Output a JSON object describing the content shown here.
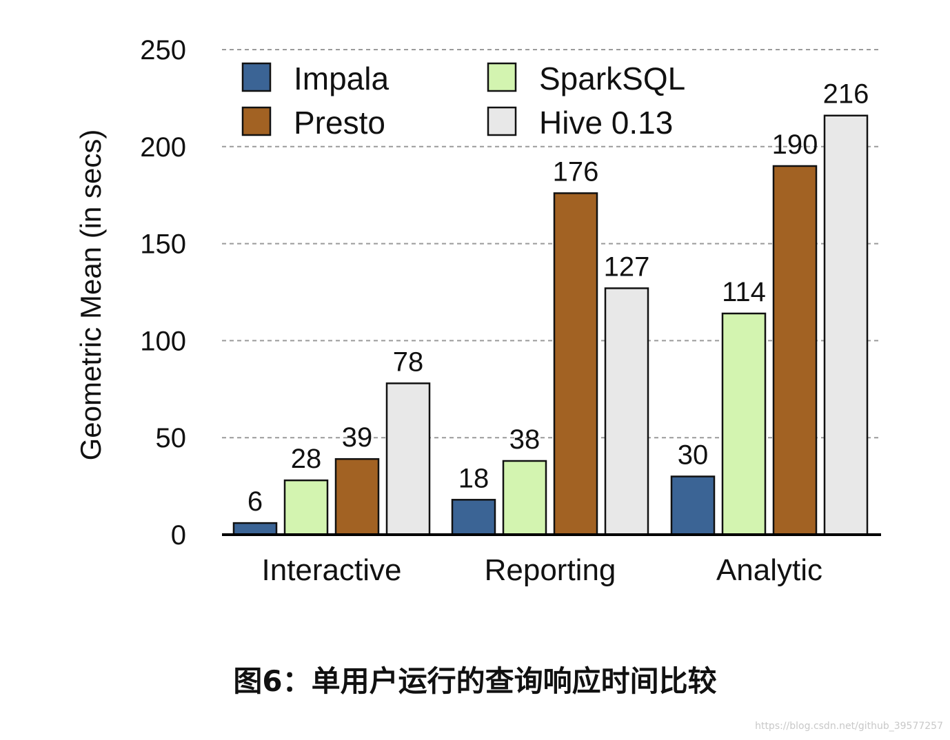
{
  "chart_data": {
    "type": "bar",
    "categories": [
      "Interactive",
      "Reporting",
      "Analytic"
    ],
    "series": [
      {
        "name": "Impala",
        "color": "#3b6495",
        "values": [
          6,
          18,
          30
        ]
      },
      {
        "name": "SparkSQL",
        "color": "#d3f4b0",
        "values": [
          28,
          38,
          114
        ]
      },
      {
        "name": "Presto",
        "color": "#a26223",
        "values": [
          39,
          176,
          190
        ]
      },
      {
        "name": "Hive 0.13",
        "color": "#e8e8e8",
        "values": [
          78,
          127,
          216
        ]
      }
    ],
    "bar_order": [
      "Impala",
      "SparkSQL",
      "Presto",
      "Hive 0.13"
    ],
    "legend_order": [
      "Impala",
      "SparkSQL",
      "Presto",
      "Hive 0.13"
    ],
    "legend_position": "top-left, inside plot, two columns",
    "ylabel": "Geometric Mean (in secs)",
    "xlabel": "",
    "ylim": [
      0,
      250
    ],
    "yticks": [
      0,
      50,
      100,
      150,
      200,
      250
    ],
    "grid": "horizontal dashed"
  },
  "caption": "图6：单用户运行的查询响应时间比较",
  "watermark": "https://blog.csdn.net/github_39577257"
}
